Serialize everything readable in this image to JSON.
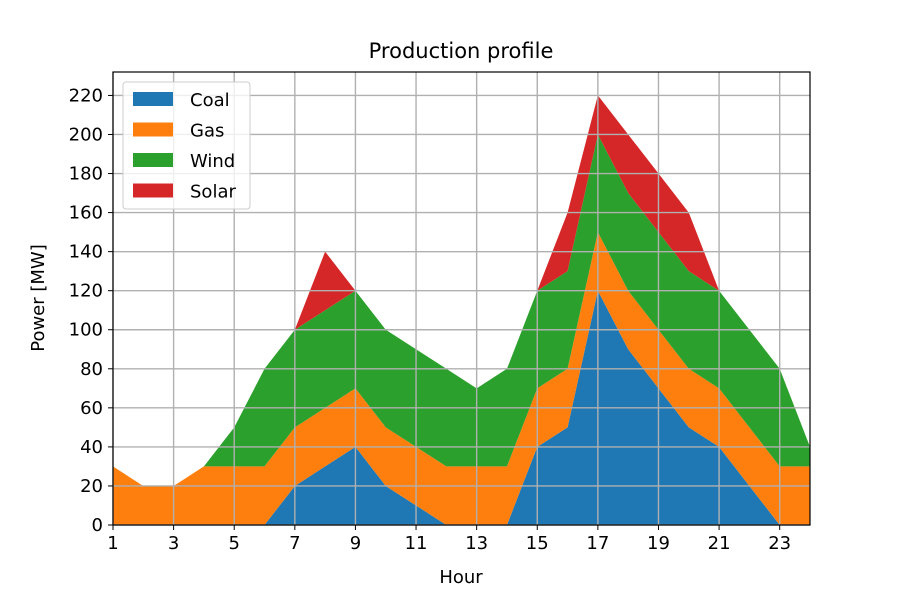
{
  "chart_data": {
    "type": "area",
    "stacked": true,
    "title": "Production profile",
    "xlabel": "Hour",
    "ylabel": "Power [MW]",
    "x": [
      1,
      2,
      3,
      4,
      5,
      6,
      7,
      8,
      9,
      10,
      11,
      12,
      13,
      14,
      15,
      16,
      17,
      18,
      19,
      20,
      21,
      22,
      23,
      24
    ],
    "xlim": [
      1,
      24
    ],
    "ylim": [
      0,
      232
    ],
    "xticks": [
      1,
      3,
      5,
      7,
      9,
      11,
      13,
      15,
      17,
      19,
      21,
      23
    ],
    "yticks": [
      0,
      20,
      40,
      60,
      80,
      100,
      120,
      140,
      160,
      180,
      200,
      220
    ],
    "grid": true,
    "legend_position": "upper-left",
    "series": [
      {
        "name": "Coal",
        "color": "#1f77b4",
        "values": [
          0,
          0,
          0,
          0,
          0,
          0,
          20,
          30,
          40,
          20,
          10,
          0,
          0,
          0,
          40,
          50,
          120,
          90,
          70,
          50,
          40,
          20,
          0,
          0
        ]
      },
      {
        "name": "Gas",
        "color": "#ff7f0e",
        "values": [
          30,
          20,
          20,
          30,
          30,
          30,
          30,
          30,
          30,
          30,
          30,
          30,
          30,
          30,
          30,
          30,
          30,
          30,
          30,
          30,
          30,
          30,
          30,
          30
        ]
      },
      {
        "name": "Wind",
        "color": "#2ca02c",
        "values": [
          0,
          0,
          0,
          0,
          20,
          50,
          50,
          50,
          50,
          50,
          50,
          50,
          40,
          50,
          50,
          50,
          50,
          50,
          50,
          50,
          50,
          50,
          50,
          10
        ]
      },
      {
        "name": "Solar",
        "color": "#d62728",
        "values": [
          0,
          0,
          0,
          0,
          0,
          0,
          0,
          30,
          0,
          0,
          0,
          0,
          0,
          0,
          0,
          30,
          20,
          30,
          30,
          30,
          0,
          0,
          0,
          0
        ]
      }
    ]
  }
}
